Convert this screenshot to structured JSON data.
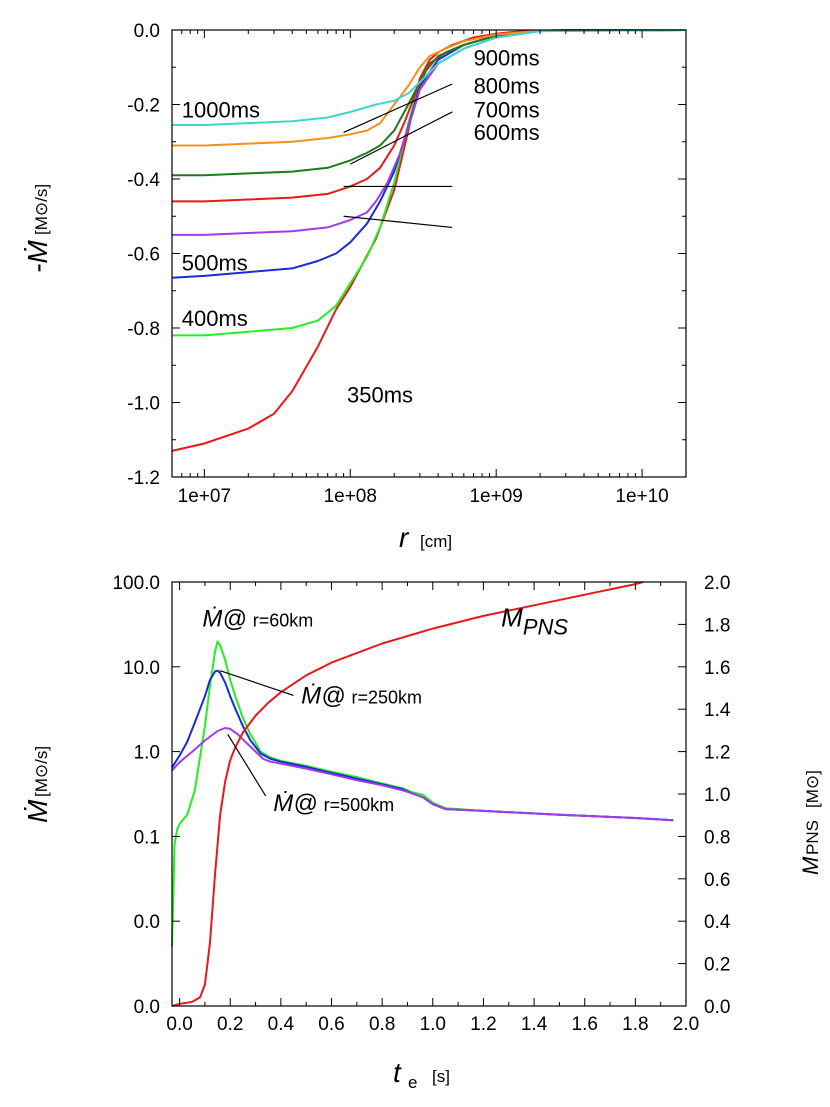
{
  "chart_data": [
    {
      "type": "line",
      "xlabel": "r",
      "xlabel_unit": "[cm]",
      "ylabel": "-Ṁ",
      "ylabel_unit": "[M⊙/s]",
      "xscale": "log",
      "xlim": [
        6000000.0,
        20000000000.0
      ],
      "ylim": [
        -1.2,
        0.0
      ],
      "xticks": [
        10000000.0,
        100000000.0,
        1000000000.0,
        10000000000.0
      ],
      "xtick_labels": [
        "1e+07",
        "1e+08",
        "1e+09",
        "1e+10"
      ],
      "yticks": [
        -1.2,
        -1.0,
        -0.8,
        -0.6,
        -0.4,
        -0.2,
        0.0
      ],
      "ytick_labels": [
        "-1.2",
        "-1.0",
        "-0.8",
        "-0.6",
        "-0.4",
        "-0.2",
        "0.0"
      ],
      "series": [
        {
          "name": "350ms",
          "color": "#e8191b",
          "x": [
            6000000.0,
            10000000.0,
            20000000.0,
            30000000.0,
            40000000.0,
            60000000.0,
            80000000.0,
            100000000.0,
            150000000.0,
            200000000.0,
            250000000.0,
            300000000.0,
            350000000.0,
            400000000.0,
            500000000.0,
            700000000.0,
            1000000000.0,
            1500000000.0,
            3000000000.0,
            20000000000.0
          ],
          "y": [
            -1.13,
            -1.11,
            -1.07,
            -1.03,
            -0.97,
            -0.85,
            -0.75,
            -0.69,
            -0.56,
            -0.43,
            -0.27,
            -0.13,
            -0.08,
            -0.06,
            -0.04,
            -0.02,
            -0.01,
            -0.003,
            0.0,
            0.0
          ]
        },
        {
          "name": "400ms",
          "color": "#21f021",
          "x": [
            6000000.0,
            10000000.0,
            20000000.0,
            40000000.0,
            60000000.0,
            80000000.0,
            100000000.0,
            130000000.0,
            160000000.0,
            200000000.0,
            250000000.0,
            300000000.0,
            350000000.0,
            450000000.0,
            600000000.0,
            1000000000.0,
            2000000000.0,
            20000000000.0
          ],
          "y": [
            -0.82,
            -0.82,
            -0.81,
            -0.8,
            -0.78,
            -0.74,
            -0.68,
            -0.61,
            -0.53,
            -0.41,
            -0.25,
            -0.14,
            -0.09,
            -0.06,
            -0.04,
            -0.015,
            -0.002,
            0.0
          ]
        },
        {
          "name": "500ms",
          "color": "#1a2cd6",
          "x": [
            6000000.0,
            10000000.0,
            20000000.0,
            40000000.0,
            60000000.0,
            80000000.0,
            100000000.0,
            130000000.0,
            160000000.0,
            200000000.0,
            250000000.0,
            300000000.0,
            400000000.0,
            600000000.0,
            1000000000.0,
            2000000000.0,
            20000000000.0
          ],
          "y": [
            -0.665,
            -0.66,
            -0.65,
            -0.64,
            -0.62,
            -0.6,
            -0.57,
            -0.52,
            -0.46,
            -0.38,
            -0.26,
            -0.15,
            -0.08,
            -0.04,
            -0.015,
            -0.002,
            0.0
          ]
        },
        {
          "name": "600ms",
          "color": "#a03be8",
          "x": [
            6000000.0,
            10000000.0,
            20000000.0,
            40000000.0,
            70000000.0,
            100000000.0,
            130000000.0,
            150000000.0,
            180000000.0,
            220000000.0,
            260000000.0,
            300000000.0,
            400000000.0,
            600000000.0,
            1000000000.0,
            2000000000.0,
            20000000000.0
          ],
          "y": [
            -0.55,
            -0.55,
            -0.545,
            -0.54,
            -0.53,
            -0.51,
            -0.49,
            -0.46,
            -0.41,
            -0.33,
            -0.24,
            -0.16,
            -0.09,
            -0.05,
            -0.02,
            -0.003,
            0.0
          ]
        },
        {
          "name": "700ms",
          "color": "#e8191b",
          "x": [
            6000000.0,
            10000000.0,
            20000000.0,
            40000000.0,
            70000000.0,
            100000000.0,
            130000000.0,
            160000000.0,
            200000000.0,
            240000000.0,
            280000000.0,
            330000000.0,
            400000000.0,
            600000000.0,
            1000000000.0,
            2000000000.0,
            20000000000.0
          ],
          "y": [
            -0.46,
            -0.46,
            -0.455,
            -0.45,
            -0.44,
            -0.42,
            -0.4,
            -0.37,
            -0.31,
            -0.24,
            -0.17,
            -0.11,
            -0.07,
            -0.04,
            -0.015,
            -0.002,
            0.0
          ]
        },
        {
          "name": "800ms",
          "color": "#1c7c1c",
          "x": [
            6000000.0,
            10000000.0,
            20000000.0,
            40000000.0,
            70000000.0,
            100000000.0,
            130000000.0,
            160000000.0,
            200000000.0,
            250000000.0,
            300000000.0,
            350000000.0,
            450000000.0,
            600000000.0,
            1000000000.0,
            2000000000.0,
            20000000000.0
          ],
          "y": [
            -0.39,
            -0.39,
            -0.385,
            -0.38,
            -0.37,
            -0.35,
            -0.33,
            -0.31,
            -0.27,
            -0.2,
            -0.14,
            -0.09,
            -0.06,
            -0.04,
            -0.015,
            -0.002,
            0.0
          ]
        },
        {
          "name": "900ms",
          "color": "#f5901a",
          "x": [
            6000000.0,
            10000000.0,
            20000000.0,
            40000000.0,
            70000000.0,
            100000000.0,
            130000000.0,
            160000000.0,
            200000000.0,
            250000000.0,
            300000000.0,
            350000000.0,
            450000000.0,
            600000000.0,
            1000000000.0,
            2000000000.0,
            20000000000.0
          ],
          "y": [
            -0.31,
            -0.31,
            -0.305,
            -0.3,
            -0.29,
            -0.28,
            -0.27,
            -0.25,
            -0.2,
            -0.15,
            -0.1,
            -0.07,
            -0.05,
            -0.03,
            -0.012,
            -0.002,
            0.0
          ]
        },
        {
          "name": "1000ms",
          "color": "#3fd6c4",
          "x": [
            6000000.0,
            10000000.0,
            20000000.0,
            40000000.0,
            70000000.0,
            100000000.0,
            150000000.0,
            200000000.0,
            250000000.0,
            300000000.0,
            400000000.0,
            600000000.0,
            1000000000.0,
            2000000000.0,
            20000000000.0
          ],
          "y": [
            -0.255,
            -0.255,
            -0.25,
            -0.245,
            -0.235,
            -0.22,
            -0.2,
            -0.19,
            -0.17,
            -0.14,
            -0.09,
            -0.05,
            -0.02,
            -0.003,
            0.0
          ]
        }
      ],
      "annotations": [
        {
          "text": "1000ms",
          "x": 7000000.0,
          "y": -0.235
        },
        {
          "text": "900ms",
          "x": 700000000.0,
          "y": -0.095,
          "line_from": [
            500000000.0,
            -0.145
          ],
          "line_to": [
            90000000.0,
            -0.275
          ]
        },
        {
          "text": "800ms",
          "x": 700000000.0,
          "y": -0.17,
          "line_from": [
            500000000.0,
            -0.22
          ],
          "line_to": [
            100000000.0,
            -0.36
          ]
        },
        {
          "text": "700ms",
          "x": 700000000.0,
          "y": -0.235,
          "line_from": [
            500000000.0,
            -0.42
          ],
          "line_to": [
            90000000.0,
            -0.42
          ]
        },
        {
          "text": "600ms",
          "x": 700000000.0,
          "y": -0.295,
          "line_from": [
            500000000.0,
            -0.53
          ],
          "line_to": [
            90000000.0,
            -0.5
          ]
        },
        {
          "text": "500ms",
          "x": 7000000.0,
          "y": -0.645
        },
        {
          "text": "400ms",
          "x": 7000000.0,
          "y": -0.795
        },
        {
          "text": "350ms",
          "x": 95000000.0,
          "y": -1.0
        }
      ]
    },
    {
      "type": "line",
      "xlabel": "t",
      "xlabel_sub": "e",
      "xlabel_unit": "[s]",
      "ylabel": "Ṁ",
      "ylabel_unit": "[M⊙/s]",
      "y2label": "M",
      "y2label_sub": "PNS",
      "y2label_unit": "[M⊙]",
      "xlim": [
        -0.03,
        2.0
      ],
      "ylim_left": [
        0.0,
        100.0
      ],
      "ylim_right": [
        0.0,
        2.0
      ],
      "xticks": [
        0.0,
        0.2,
        0.4,
        0.6,
        0.8,
        1.0,
        1.2,
        1.4,
        1.6,
        1.8,
        2.0
      ],
      "xtick_labels": [
        "0.0",
        "0.2",
        "0.4",
        "0.6",
        "0.8",
        "1.0",
        "1.2",
        "1.4",
        "1.6",
        "1.8",
        "2.0"
      ],
      "yticks_left": [
        0.001,
        0.01,
        0.1,
        1.0,
        10.0,
        100.0
      ],
      "ytick_labels_left": [
        "0.0",
        "0.0",
        "0.1",
        "1.0",
        "10.0",
        "100.0"
      ],
      "yticks_right": [
        0.0,
        0.2,
        0.4,
        0.6,
        0.8,
        1.0,
        1.2,
        1.4,
        1.6,
        1.8,
        2.0
      ],
      "ytick_labels_right": [
        "0.0",
        "0.2",
        "0.4",
        "0.6",
        "0.8",
        "1.0",
        "1.2",
        "1.4",
        "1.6",
        "1.8",
        "2.0"
      ],
      "series": [
        {
          "name": "Ṁ@ r=60km",
          "axis": "left",
          "color": "#21f021",
          "x": [
            -0.03,
            -0.025,
            -0.02,
            -0.01,
            0.0,
            0.03,
            0.06,
            0.1,
            0.12,
            0.14,
            0.15,
            0.16,
            0.18,
            0.2,
            0.22,
            0.25,
            0.28,
            0.32,
            0.36,
            0.4,
            0.5,
            0.6,
            0.7,
            0.8,
            0.88,
            0.92,
            0.96,
            1.0,
            1.05,
            1.2,
            1.5,
            1.8,
            1.95
          ],
          "y": [
            0.005,
            0.02,
            0.08,
            0.12,
            0.14,
            0.18,
            0.35,
            2.0,
            6.0,
            15.0,
            20.0,
            18.0,
            12.0,
            7.0,
            4.5,
            2.5,
            1.6,
            1.0,
            0.85,
            0.78,
            0.68,
            0.58,
            0.5,
            0.42,
            0.37,
            0.33,
            0.31,
            0.25,
            0.215,
            0.2,
            0.18,
            0.165,
            0.155
          ]
        },
        {
          "name": "Ṁ@ r=250km",
          "axis": "left",
          "color": "#1a2cd6",
          "x": [
            -0.03,
            0.0,
            0.03,
            0.06,
            0.1,
            0.12,
            0.14,
            0.15,
            0.16,
            0.18,
            0.2,
            0.22,
            0.25,
            0.28,
            0.32,
            0.36,
            0.4,
            0.5,
            0.6,
            0.7,
            0.8,
            0.88,
            0.92,
            0.96,
            1.0,
            1.05,
            1.2,
            1.5,
            1.8,
            1.95
          ],
          "y": [
            0.65,
            0.9,
            1.3,
            2.2,
            4.5,
            7.0,
            8.8,
            9.0,
            8.5,
            6.5,
            4.5,
            3.2,
            2.0,
            1.35,
            0.95,
            0.82,
            0.76,
            0.66,
            0.56,
            0.48,
            0.41,
            0.36,
            0.32,
            0.29,
            0.24,
            0.21,
            0.2,
            0.18,
            0.165,
            0.155
          ]
        },
        {
          "name": "Ṁ@ r=500km",
          "axis": "left",
          "color": "#a03be8",
          "x": [
            -0.03,
            0.0,
            0.05,
            0.1,
            0.15,
            0.18,
            0.2,
            0.23,
            0.26,
            0.3,
            0.33,
            0.36,
            0.4,
            0.5,
            0.6,
            0.7,
            0.8,
            0.88,
            0.92,
            0.96,
            1.0,
            1.05,
            1.2,
            1.5,
            1.8,
            1.95
          ],
          "y": [
            0.6,
            0.75,
            1.0,
            1.35,
            1.75,
            1.9,
            1.85,
            1.6,
            1.3,
            1.0,
            0.82,
            0.76,
            0.72,
            0.63,
            0.54,
            0.46,
            0.4,
            0.35,
            0.32,
            0.29,
            0.24,
            0.21,
            0.2,
            0.18,
            0.165,
            0.155
          ]
        },
        {
          "name": "M_PNS",
          "axis": "right",
          "color": "#e8191b",
          "x": [
            -0.03,
            0.0,
            0.05,
            0.08,
            0.1,
            0.12,
            0.14,
            0.16,
            0.18,
            0.2,
            0.22,
            0.25,
            0.3,
            0.35,
            0.4,
            0.5,
            0.6,
            0.8,
            1.0,
            1.2,
            1.4,
            1.6,
            1.8,
            1.83
          ],
          "y": [
            0.0,
            0.01,
            0.02,
            0.04,
            0.1,
            0.3,
            0.62,
            0.9,
            1.06,
            1.16,
            1.22,
            1.29,
            1.37,
            1.43,
            1.48,
            1.56,
            1.62,
            1.71,
            1.78,
            1.84,
            1.89,
            1.94,
            1.99,
            2.0
          ]
        }
      ],
      "annotations": [
        {
          "text_main": "Ṁ@",
          "text_sub": "r=60km",
          "x": 0.09,
          "y": 30.0
        },
        {
          "text_main": "Ṁ@",
          "text_sub": "r=250km",
          "x": 0.48,
          "y": 3.7,
          "line_from": [
            0.45,
            4.6
          ],
          "line_to": [
            0.16,
            9.0
          ]
        },
        {
          "text_main": "Ṁ@",
          "text_sub": "r=500km",
          "x": 0.37,
          "y": 0.2,
          "line_from": [
            0.34,
            0.3
          ],
          "line_to": [
            0.19,
            1.6
          ]
        },
        {
          "text_main": "M",
          "text_sub": "PNS",
          "x": 1.27,
          "y": 30.0
        }
      ]
    }
  ]
}
